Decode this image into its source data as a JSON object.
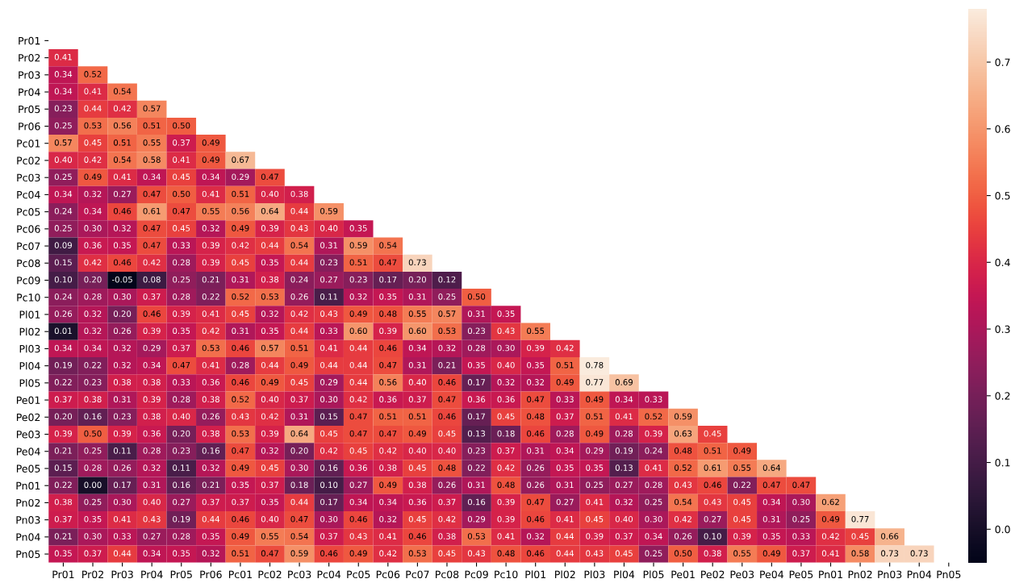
{
  "chart_data": {
    "type": "heatmap",
    "categories": [
      "Pr01",
      "Pr02",
      "Pr03",
      "Pr04",
      "Pr05",
      "Pr06",
      "Pc01",
      "Pc02",
      "Pc03",
      "Pc04",
      "Pc05",
      "Pc06",
      "Pc07",
      "Pc08",
      "Pc09",
      "Pc10",
      "Pl01",
      "Pl02",
      "Pl03",
      "Pl04",
      "Pl05",
      "Pe01",
      "Pe02",
      "Pe03",
      "Pe04",
      "Pe05",
      "Pn01",
      "Pn02",
      "Pn03",
      "Pn04",
      "Pn05"
    ],
    "y_categories": [
      "Pr01",
      "Pr02",
      "Pr03",
      "Pr04",
      "Pr05",
      "Pr06",
      "Pc01",
      "Pc02",
      "Pc03",
      "Pc04",
      "Pc05",
      "Pc06",
      "Pc07",
      "Pc08",
      "Pc09",
      "Pc10",
      "Pl01",
      "Pl02",
      "Pl03",
      "Pl04",
      "Pl05",
      "Pe01",
      "Pe02",
      "Pe03",
      "Pe04",
      "Pe05",
      "Pn01",
      "Pn02",
      "Pn03",
      "Pn04",
      "Pn05"
    ],
    "cells": [
      [
        null,
        null,
        null,
        null,
        null,
        null,
        null,
        null,
        null,
        null,
        null,
        null,
        null,
        null,
        null,
        null,
        null,
        null,
        null,
        null,
        null,
        null,
        null,
        null,
        null,
        null,
        null,
        null,
        null,
        null,
        null
      ],
      [
        0.41,
        null,
        null,
        null,
        null,
        null,
        null,
        null,
        null,
        null,
        null,
        null,
        null,
        null,
        null,
        null,
        null,
        null,
        null,
        null,
        null,
        null,
        null,
        null,
        null,
        null,
        null,
        null,
        null,
        null,
        null
      ],
      [
        0.34,
        0.52,
        null,
        null,
        null,
        null,
        null,
        null,
        null,
        null,
        null,
        null,
        null,
        null,
        null,
        null,
        null,
        null,
        null,
        null,
        null,
        null,
        null,
        null,
        null,
        null,
        null,
        null,
        null,
        null,
        null
      ],
      [
        0.34,
        0.41,
        0.54,
        null,
        null,
        null,
        null,
        null,
        null,
        null,
        null,
        null,
        null,
        null,
        null,
        null,
        null,
        null,
        null,
        null,
        null,
        null,
        null,
        null,
        null,
        null,
        null,
        null,
        null,
        null,
        null
      ],
      [
        0.23,
        0.44,
        0.42,
        0.57,
        null,
        null,
        null,
        null,
        null,
        null,
        null,
        null,
        null,
        null,
        null,
        null,
        null,
        null,
        null,
        null,
        null,
        null,
        null,
        null,
        null,
        null,
        null,
        null,
        null,
        null,
        null
      ],
      [
        0.25,
        0.53,
        0.56,
        0.51,
        0.5,
        null,
        null,
        null,
        null,
        null,
        null,
        null,
        null,
        null,
        null,
        null,
        null,
        null,
        null,
        null,
        null,
        null,
        null,
        null,
        null,
        null,
        null,
        null,
        null,
        null,
        null
      ],
      [
        0.57,
        0.45,
        0.51,
        0.55,
        0.37,
        0.49,
        null,
        null,
        null,
        null,
        null,
        null,
        null,
        null,
        null,
        null,
        null,
        null,
        null,
        null,
        null,
        null,
        null,
        null,
        null,
        null,
        null,
        null,
        null,
        null,
        null
      ],
      [
        0.4,
        0.42,
        0.54,
        0.58,
        0.41,
        0.49,
        0.67,
        null,
        null,
        null,
        null,
        null,
        null,
        null,
        null,
        null,
        null,
        null,
        null,
        null,
        null,
        null,
        null,
        null,
        null,
        null,
        null,
        null,
        null,
        null,
        null
      ],
      [
        0.25,
        0.49,
        0.41,
        0.34,
        0.45,
        0.34,
        0.29,
        0.47,
        null,
        null,
        null,
        null,
        null,
        null,
        null,
        null,
        null,
        null,
        null,
        null,
        null,
        null,
        null,
        null,
        null,
        null,
        null,
        null,
        null,
        null,
        null
      ],
      [
        0.34,
        0.32,
        0.27,
        0.47,
        0.5,
        0.41,
        0.51,
        0.4,
        0.38,
        null,
        null,
        null,
        null,
        null,
        null,
        null,
        null,
        null,
        null,
        null,
        null,
        null,
        null,
        null,
        null,
        null,
        null,
        null,
        null,
        null,
        null
      ],
      [
        0.24,
        0.34,
        0.46,
        0.61,
        0.47,
        0.55,
        0.56,
        0.64,
        0.44,
        0.59,
        null,
        null,
        null,
        null,
        null,
        null,
        null,
        null,
        null,
        null,
        null,
        null,
        null,
        null,
        null,
        null,
        null,
        null,
        null,
        null,
        null
      ],
      [
        0.25,
        0.3,
        0.32,
        0.47,
        0.45,
        0.32,
        0.49,
        0.39,
        0.43,
        0.4,
        0.35,
        null,
        null,
        null,
        null,
        null,
        null,
        null,
        null,
        null,
        null,
        null,
        null,
        null,
        null,
        null,
        null,
        null,
        null,
        null,
        null
      ],
      [
        0.09,
        0.36,
        0.35,
        0.47,
        0.33,
        0.39,
        0.42,
        0.44,
        0.54,
        0.31,
        0.59,
        0.54,
        null,
        null,
        null,
        null,
        null,
        null,
        null,
        null,
        null,
        null,
        null,
        null,
        null,
        null,
        null,
        null,
        null,
        null,
        null
      ],
      [
        0.15,
        0.42,
        0.46,
        0.42,
        0.28,
        0.39,
        0.45,
        0.35,
        0.44,
        0.23,
        0.51,
        0.47,
        0.73,
        null,
        null,
        null,
        null,
        null,
        null,
        null,
        null,
        null,
        null,
        null,
        null,
        null,
        null,
        null,
        null,
        null,
        null
      ],
      [
        0.1,
        0.2,
        -0.05,
        0.08,
        0.25,
        0.21,
        0.31,
        0.38,
        0.24,
        0.27,
        0.23,
        0.17,
        0.2,
        0.12,
        null,
        null,
        null,
        null,
        null,
        null,
        null,
        null,
        null,
        null,
        null,
        null,
        null,
        null,
        null,
        null,
        null
      ],
      [
        0.24,
        0.28,
        0.3,
        0.37,
        0.28,
        0.22,
        0.52,
        0.53,
        0.26,
        0.11,
        0.32,
        0.35,
        0.31,
        0.25,
        0.5,
        null,
        null,
        null,
        null,
        null,
        null,
        null,
        null,
        null,
        null,
        null,
        null,
        null,
        null,
        null,
        null
      ],
      [
        0.26,
        0.32,
        0.2,
        0.46,
        0.39,
        0.41,
        0.45,
        0.32,
        0.42,
        0.43,
        0.49,
        0.48,
        0.55,
        0.57,
        0.31,
        0.35,
        null,
        null,
        null,
        null,
        null,
        null,
        null,
        null,
        null,
        null,
        null,
        null,
        null,
        null,
        null
      ],
      [
        0.01,
        0.32,
        0.26,
        0.39,
        0.35,
        0.42,
        0.31,
        0.35,
        0.44,
        0.33,
        0.6,
        0.39,
        0.6,
        0.53,
        0.23,
        0.43,
        0.55,
        null,
        null,
        null,
        null,
        null,
        null,
        null,
        null,
        null,
        null,
        null,
        null,
        null,
        null
      ],
      [
        0.34,
        0.34,
        0.32,
        0.29,
        0.37,
        0.53,
        0.46,
        0.57,
        0.51,
        0.41,
        0.44,
        0.46,
        0.34,
        0.32,
        0.28,
        0.3,
        0.39,
        0.42,
        null,
        null,
        null,
        null,
        null,
        null,
        null,
        null,
        null,
        null,
        null,
        null,
        null
      ],
      [
        0.19,
        0.22,
        0.32,
        0.34,
        0.47,
        0.41,
        0.28,
        0.44,
        0.49,
        0.44,
        0.44,
        0.47,
        0.31,
        0.21,
        0.35,
        0.4,
        0.35,
        0.51,
        0.78,
        null,
        null,
        null,
        null,
        null,
        null,
        null,
        null,
        null,
        null,
        null,
        null
      ],
      [
        0.22,
        0.23,
        0.38,
        0.38,
        0.33,
        0.36,
        0.46,
        0.49,
        0.45,
        0.29,
        0.44,
        0.56,
        0.4,
        0.46,
        0.17,
        0.32,
        0.32,
        0.49,
        0.77,
        0.69,
        null,
        null,
        null,
        null,
        null,
        null,
        null,
        null,
        null,
        null,
        null
      ],
      [
        0.37,
        0.38,
        0.31,
        0.39,
        0.28,
        0.38,
        0.52,
        0.4,
        0.37,
        0.3,
        0.42,
        0.36,
        0.37,
        0.47,
        0.36,
        0.36,
        0.47,
        0.33,
        0.49,
        0.34,
        0.33,
        null,
        null,
        null,
        null,
        null,
        null,
        null,
        null,
        null,
        null
      ],
      [
        0.2,
        0.16,
        0.23,
        0.38,
        0.4,
        0.26,
        0.43,
        0.42,
        0.31,
        0.15,
        0.47,
        0.51,
        0.51,
        0.46,
        0.17,
        0.45,
        0.48,
        0.37,
        0.51,
        0.41,
        0.52,
        0.59,
        null,
        null,
        null,
        null,
        null,
        null,
        null,
        null,
        null
      ],
      [
        0.39,
        0.5,
        0.39,
        0.36,
        0.2,
        0.38,
        0.53,
        0.39,
        0.64,
        0.45,
        0.47,
        0.47,
        0.49,
        0.45,
        0.13,
        0.18,
        0.46,
        0.28,
        0.49,
        0.28,
        0.39,
        0.63,
        0.45,
        null,
        null,
        null,
        null,
        null,
        null,
        null,
        null
      ],
      [
        0.21,
        0.25,
        0.11,
        0.28,
        0.23,
        0.16,
        0.47,
        0.32,
        0.2,
        0.42,
        0.45,
        0.42,
        0.4,
        0.4,
        0.23,
        0.37,
        0.31,
        0.34,
        0.29,
        0.19,
        0.24,
        0.48,
        0.51,
        0.49,
        null,
        null,
        null,
        null,
        null,
        null,
        null
      ],
      [
        0.15,
        0.28,
        0.26,
        0.32,
        0.11,
        0.32,
        0.49,
        0.45,
        0.3,
        0.16,
        0.36,
        0.38,
        0.45,
        0.48,
        0.22,
        0.42,
        0.26,
        0.35,
        0.35,
        0.13,
        0.41,
        0.52,
        0.61,
        0.55,
        0.64,
        null,
        null,
        null,
        null,
        null,
        null
      ],
      [
        0.22,
        0.0,
        0.17,
        0.31,
        0.16,
        0.21,
        0.35,
        0.37,
        0.18,
        0.1,
        0.27,
        0.49,
        0.38,
        0.26,
        0.31,
        0.48,
        0.26,
        0.31,
        0.25,
        0.27,
        0.28,
        0.43,
        0.46,
        0.22,
        0.47,
        0.47,
        null,
        null,
        null,
        null,
        null
      ],
      [
        0.38,
        0.25,
        0.3,
        0.4,
        0.27,
        0.37,
        0.37,
        0.35,
        0.44,
        0.17,
        0.34,
        0.34,
        0.36,
        0.37,
        0.16,
        0.39,
        0.47,
        0.27,
        0.41,
        0.32,
        0.25,
        0.54,
        0.43,
        0.45,
        0.34,
        0.3,
        0.62,
        null,
        null,
        null,
        null
      ],
      [
        0.37,
        0.35,
        0.41,
        0.43,
        0.19,
        0.44,
        0.46,
        0.4,
        0.47,
        0.3,
        0.46,
        0.32,
        0.45,
        0.42,
        0.29,
        0.39,
        0.46,
        0.41,
        0.45,
        0.4,
        0.3,
        0.42,
        0.27,
        0.45,
        0.31,
        0.25,
        0.49,
        0.77,
        null,
        null,
        null
      ],
      [
        0.21,
        0.3,
        0.33,
        0.27,
        0.28,
        0.35,
        0.49,
        0.55,
        0.54,
        0.37,
        0.43,
        0.41,
        0.46,
        0.38,
        0.53,
        0.41,
        0.32,
        0.44,
        0.39,
        0.37,
        0.34,
        0.26,
        0.1,
        0.39,
        0.35,
        0.33,
        0.42,
        0.45,
        0.66,
        null,
        null
      ],
      [
        0.35,
        0.37,
        0.44,
        0.34,
        0.35,
        0.32,
        0.51,
        0.47,
        0.59,
        0.46,
        0.49,
        0.42,
        0.53,
        0.45,
        0.43,
        0.48,
        0.46,
        0.44,
        0.43,
        0.45,
        0.25,
        0.5,
        0.38,
        0.55,
        0.49,
        0.37,
        0.41,
        0.58,
        0.73,
        0.73,
        null
      ]
    ],
    "cell_labels": [
      [
        null,
        null,
        null,
        null,
        null,
        null,
        null,
        null,
        null,
        null,
        null,
        null,
        null,
        null,
        null,
        null,
        null,
        null,
        null,
        null,
        null,
        null,
        null,
        null,
        null,
        null,
        null,
        null,
        null,
        null,
        null
      ],
      [
        "0.41",
        null,
        null,
        null,
        null,
        null,
        null,
        null,
        null,
        null,
        null,
        null,
        null,
        null,
        null,
        null,
        null,
        null,
        null,
        null,
        null,
        null,
        null,
        null,
        null,
        null,
        null,
        null,
        null,
        null,
        null
      ],
      [
        "0.34",
        "0.52",
        null,
        null,
        null,
        null,
        null,
        null,
        null,
        null,
        null,
        null,
        null,
        null,
        null,
        null,
        null,
        null,
        null,
        null,
        null,
        null,
        null,
        null,
        null,
        null,
        null,
        null,
        null,
        null,
        null
      ],
      [
        "0.34",
        "0.41",
        "0.54",
        null,
        null,
        null,
        null,
        null,
        null,
        null,
        null,
        null,
        null,
        null,
        null,
        null,
        null,
        null,
        null,
        null,
        null,
        null,
        null,
        null,
        null,
        null,
        null,
        null,
        null,
        null,
        null
      ],
      [
        "0.23",
        "0.44",
        "0.42",
        "0.57",
        null,
        null,
        null,
        null,
        null,
        null,
        null,
        null,
        null,
        null,
        null,
        null,
        null,
        null,
        null,
        null,
        null,
        null,
        null,
        null,
        null,
        null,
        null,
        null,
        null,
        null,
        null
      ],
      [
        "0.25",
        "0.53",
        "0.56",
        "0.51",
        "0.50",
        null,
        null,
        null,
        null,
        null,
        null,
        null,
        null,
        null,
        null,
        null,
        null,
        null,
        null,
        null,
        null,
        null,
        null,
        null,
        null,
        null,
        null,
        null,
        null,
        null,
        null
      ],
      [
        "0.57",
        "0.45",
        "0.51",
        "0.55",
        "0.37",
        "0.49",
        null,
        null,
        null,
        null,
        null,
        null,
        null,
        null,
        null,
        null,
        null,
        null,
        null,
        null,
        null,
        null,
        null,
        null,
        null,
        null,
        null,
        null,
        null,
        null,
        null
      ],
      [
        "0.40",
        "0.42",
        "0.54",
        "0.58",
        "0.41",
        "0.49",
        "0.67",
        null,
        null,
        null,
        null,
        null,
        null,
        null,
        null,
        null,
        null,
        null,
        null,
        null,
        null,
        null,
        null,
        null,
        null,
        null,
        null,
        null,
        null,
        null,
        null
      ],
      [
        "0.25",
        "0.49",
        "0.41",
        "0.34",
        "0.45",
        "0.34",
        "0.29",
        "0.47",
        null,
        null,
        null,
        null,
        null,
        null,
        null,
        null,
        null,
        null,
        null,
        null,
        null,
        null,
        null,
        null,
        null,
        null,
        null,
        null,
        null,
        null,
        null
      ],
      [
        "0.34",
        "0.32",
        "0.27",
        "0.47",
        "0.50",
        "0.41",
        "0.51",
        "0.40",
        "0.38",
        null,
        null,
        null,
        null,
        null,
        null,
        null,
        null,
        null,
        null,
        null,
        null,
        null,
        null,
        null,
        null,
        null,
        null,
        null,
        null,
        null,
        null
      ],
      [
        "0.24",
        "0.34",
        "0.46",
        "0.61",
        "0.47",
        "0.55",
        "0.56",
        "0.64",
        "0.44",
        "0.59",
        null,
        null,
        null,
        null,
        null,
        null,
        null,
        null,
        null,
        null,
        null,
        null,
        null,
        null,
        null,
        null,
        null,
        null,
        null,
        null,
        null
      ],
      [
        "0.25",
        "0.30",
        "0.32",
        "0.47",
        "0.45",
        "0.32",
        "0.49",
        "0.39",
        "0.43",
        "0.40",
        "0.35",
        null,
        null,
        null,
        null,
        null,
        null,
        null,
        null,
        null,
        null,
        null,
        null,
        null,
        null,
        null,
        null,
        null,
        null,
        null,
        null
      ],
      [
        "0.09",
        "0.36",
        "0.35",
        "0.47",
        "0.33",
        "0.39",
        "0.42",
        "0.44",
        "0.54",
        "0.31",
        "0.59",
        "0.54",
        null,
        null,
        null,
        null,
        null,
        null,
        null,
        null,
        null,
        null,
        null,
        null,
        null,
        null,
        null,
        null,
        null,
        null,
        null
      ],
      [
        "0.15",
        "0.42",
        "0.46",
        "0.42",
        "0.28",
        "0.39",
        "0.45",
        "0.35",
        "0.44",
        "0.23",
        "0.51",
        "0.47",
        "0.73",
        null,
        null,
        null,
        null,
        null,
        null,
        null,
        null,
        null,
        null,
        null,
        null,
        null,
        null,
        null,
        null,
        null,
        null
      ],
      [
        "0.10",
        "0.20",
        "-0.05",
        "0.08",
        "0.25",
        "0.21",
        "0.31",
        "0.38",
        "0.24",
        "0.27",
        "0.23",
        "0.17",
        "0.20",
        "0.12",
        null,
        null,
        null,
        null,
        null,
        null,
        null,
        null,
        null,
        null,
        null,
        null,
        null,
        null,
        null,
        null,
        null
      ],
      [
        "0.24",
        "0.28",
        "0.30",
        "0.37",
        "0.28",
        "0.22",
        "0.52",
        "0.53",
        "0.26",
        "0.11",
        "0.32",
        "0.35",
        "0.31",
        "0.25",
        "0.50",
        null,
        null,
        null,
        null,
        null,
        null,
        null,
        null,
        null,
        null,
        null,
        null,
        null,
        null,
        null,
        null
      ],
      [
        "0.26",
        "0.32",
        "0.20",
        "0.46",
        "0.39",
        "0.41",
        "0.45",
        "0.32",
        "0.42",
        "0.43",
        "0.49",
        "0.48",
        "0.55",
        "0.57",
        "0.31",
        "0.35",
        null,
        null,
        null,
        null,
        null,
        null,
        null,
        null,
        null,
        null,
        null,
        null,
        null,
        null,
        null
      ],
      [
        "0.01",
        "0.32",
        "0.26",
        "0.39",
        "0.35",
        "0.42",
        "0.31",
        "0.35",
        "0.44",
        "0.33",
        "0.60",
        "0.39",
        "0.60",
        "0.53",
        "0.23",
        "0.43",
        "0.55",
        null,
        null,
        null,
        null,
        null,
        null,
        null,
        null,
        null,
        null,
        null,
        null,
        null,
        null
      ],
      [
        "0.34",
        "0.34",
        "0.32",
        "0.29",
        "0.37",
        "0.53",
        "0.46",
        "0.57",
        "0.51",
        "0.41",
        "0.44",
        "0.46",
        "0.34",
        "0.32",
        "0.28",
        "0.30",
        "0.39",
        "0.42",
        null,
        null,
        null,
        null,
        null,
        null,
        null,
        null,
        null,
        null,
        null,
        null,
        null
      ],
      [
        "0.19",
        "0.22",
        "0.32",
        "0.34",
        "0.47",
        "0.41",
        "0.28",
        "0.44",
        "0.49",
        "0.44",
        "0.44",
        "0.47",
        "0.31",
        "0.21",
        "0.35",
        "0.40",
        "0.35",
        "0.51",
        "0.78",
        null,
        null,
        null,
        null,
        null,
        null,
        null,
        null,
        null,
        null,
        null,
        null
      ],
      [
        "0.22",
        "0.23",
        "0.38",
        "0.38",
        "0.33",
        "0.36",
        "0.46",
        "0.49",
        "0.45",
        "0.29",
        "0.44",
        "0.56",
        "0.40",
        "0.46",
        "0.17",
        "0.32",
        "0.32",
        "0.49",
        "0.77",
        "0.69",
        null,
        null,
        null,
        null,
        null,
        null,
        null,
        null,
        null,
        null,
        null
      ],
      [
        "0.37",
        "0.38",
        "0.31",
        "0.39",
        "0.28",
        "0.38",
        "0.52",
        "0.40",
        "0.37",
        "0.30",
        "0.42",
        "0.36",
        "0.37",
        "0.47",
        "0.36",
        "0.36",
        "0.47",
        "0.33",
        "0.49",
        "0.34",
        "0.33",
        null,
        null,
        null,
        null,
        null,
        null,
        null,
        null,
        null,
        null
      ],
      [
        "0.20",
        "0.16",
        "0.23",
        "0.38",
        "0.40",
        "0.26",
        "0.43",
        "0.42",
        "0.31",
        "0.15",
        "0.47",
        "0.51",
        "0.51",
        "0.46",
        "0.17",
        "0.45",
        "0.48",
        "0.37",
        "0.51",
        "0.41",
        "0.52",
        "0.59",
        null,
        null,
        null,
        null,
        null,
        null,
        null,
        null,
        null
      ],
      [
        "0.39",
        "0.50",
        "0.39",
        "0.36",
        "0.20",
        "0.38",
        "0.53",
        "0.39",
        "0.64",
        "0.45",
        "0.47",
        "0.47",
        "0.49",
        "0.45",
        "0.13",
        "0.18",
        "0.46",
        "0.28",
        "0.49",
        "0.28",
        "0.39",
        "0.63",
        "0.45",
        null,
        null,
        null,
        null,
        null,
        null,
        null,
        null
      ],
      [
        "0.21",
        "0.25",
        "0.11",
        "0.28",
        "0.23",
        "0.16",
        "0.47",
        "0.32",
        "0.20",
        "0.42",
        "0.45",
        "0.42",
        "0.40",
        "0.40",
        "0.23",
        "0.37",
        "0.31",
        "0.34",
        "0.29",
        "0.19",
        "0.24",
        "0.48",
        "0.51",
        "0.49",
        null,
        null,
        null,
        null,
        null,
        null,
        null
      ],
      [
        "0.15",
        "0.28",
        "0.26",
        "0.32",
        "0.11",
        "0.32",
        "0.49",
        "0.45",
        "0.30",
        "0.16",
        "0.36",
        "0.38",
        "0.45",
        "0.48",
        "0.22",
        "0.42",
        "0.26",
        "0.35",
        "0.35",
        "0.13",
        "0.41",
        "0.52",
        "0.61",
        "0.55",
        "0.64",
        null,
        null,
        null,
        null,
        null,
        null
      ],
      [
        "0.22",
        "0.00",
        "0.17",
        "0.31",
        "0.16",
        "0.21",
        "0.35",
        "0.37",
        "0.18",
        "0.10",
        "0.27",
        "0.49",
        "0.38",
        "0.26",
        "0.31",
        "0.48",
        "0.26",
        "0.31",
        "0.25",
        "0.27",
        "0.28",
        "0.43",
        "0.46",
        "0.22",
        "0.47",
        "0.47",
        null,
        null,
        null,
        null,
        null
      ],
      [
        "0.38",
        "0.25",
        "0.30",
        "0.40",
        "0.27",
        "0.37",
        "0.37",
        "0.35",
        "0.44",
        "0.17",
        "0.34",
        "0.34",
        "0.36",
        "0.37",
        "0.16",
        "0.39",
        "0.47",
        "0.27",
        "0.41",
        "0.32",
        "0.25",
        "0.54",
        "0.43",
        "0.45",
        "0.34",
        "0.30",
        "0.62",
        null,
        null,
        null,
        null
      ],
      [
        "0.37",
        "0.35",
        "0.41",
        "0.43",
        "0.19",
        "0.44",
        "0.46",
        "0.40",
        "0.47",
        "0.30",
        "0.46",
        "0.32",
        "0.45",
        "0.42",
        "0.29",
        "0.39",
        "0.46",
        "0.41",
        "0.45",
        "0.40",
        "0.30",
        "0.42",
        "0.27",
        "0.45",
        "0.31",
        "0.25",
        "0.49",
        "0.77",
        null,
        null,
        null
      ],
      [
        "0.21",
        "0.30",
        "0.33",
        "0.27",
        "0.28",
        "0.35",
        "0.49",
        "0.55",
        "0.54",
        "0.37",
        "0.43",
        "0.41",
        "0.46",
        "0.38",
        "0.53",
        "0.41",
        "0.32",
        "0.44",
        "0.39",
        "0.37",
        "0.34",
        "0.26",
        "0.10",
        "0.39",
        "0.35",
        "0.33",
        "0.42",
        "0.45",
        "0.66",
        null,
        null
      ],
      [
        "0.35",
        "0.37",
        "0.44",
        "0.34",
        "0.35",
        "0.32",
        "0.51",
        "0.47",
        "0.59",
        "0.46",
        "0.49",
        "0.42",
        "0.53",
        "0.45",
        "0.43",
        "0.48",
        "0.46",
        "0.44",
        "0.43",
        "0.45",
        "0.25",
        "0.50",
        "0.38",
        "0.55",
        "0.49",
        "0.37",
        "0.41",
        "0.58",
        "0.73",
        "0.73",
        null
      ]
    ],
    "clim": [
      -0.05,
      0.78
    ],
    "cticks": [
      {
        "value": 0,
        "label": "0.0"
      },
      {
        "value": 0.1,
        "label": "0.1"
      },
      {
        "value": 0.2,
        "label": "0.2"
      },
      {
        "value": 0.3,
        "label": "0.3"
      },
      {
        "value": 0.4,
        "label": "0.4"
      },
      {
        "value": 0.5,
        "label": "0.5"
      },
      {
        "value": 0.6,
        "label": "0.6"
      },
      {
        "value": 0.7,
        "label": "0.7"
      }
    ]
  }
}
